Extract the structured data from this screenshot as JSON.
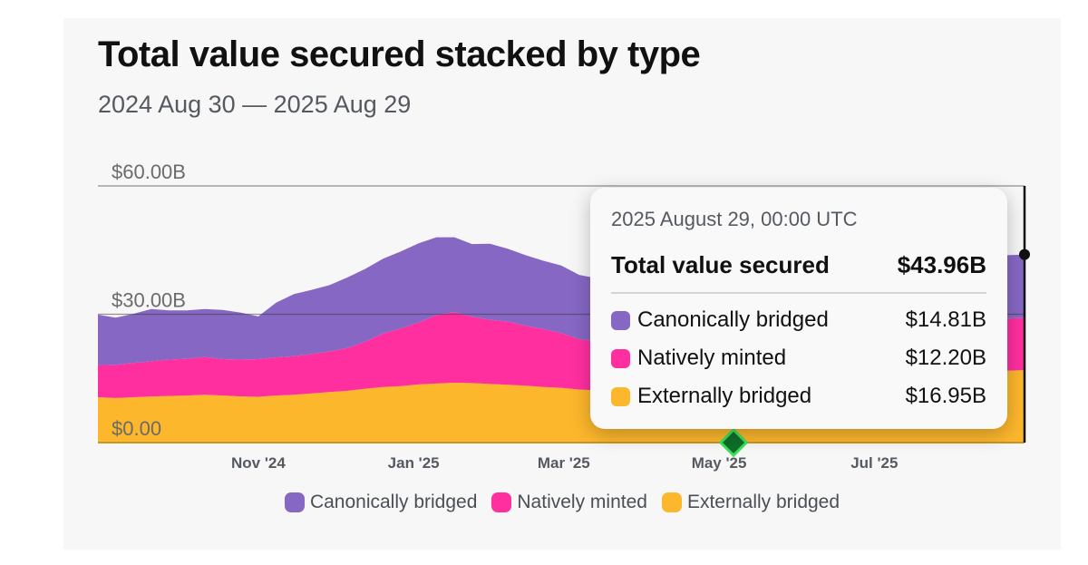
{
  "title": "Total value secured stacked by type",
  "subtitle": "2024 Aug 30 — 2025 Aug 29",
  "colors": {
    "canonically": "#8668c4",
    "natively": "#ff2f9f",
    "externally": "#fdb72c",
    "marker": "#0f6e2a",
    "marker_glow": "#3ee05a"
  },
  "tooltip": {
    "date": "2025 August 29, 00:00 UTC",
    "total_label": "Total value secured",
    "total_value": "$43.96B",
    "rows": [
      {
        "label": "Canonically bridged",
        "value": "$14.81B",
        "color": "#8668c4"
      },
      {
        "label": "Natively minted",
        "value": "$12.20B",
        "color": "#ff2f9f"
      },
      {
        "label": "Externally bridged",
        "value": "$16.95B",
        "color": "#fdb72c"
      }
    ]
  },
  "legend": [
    {
      "label": "Canonically bridged",
      "color": "#8668c4"
    },
    {
      "label": "Natively minted",
      "color": "#ff2f9f"
    },
    {
      "label": "Externally bridged",
      "color": "#fdb72c"
    }
  ],
  "chart_data": {
    "type": "area",
    "stacked": true,
    "title": "Total value secured stacked by type",
    "subtitle": "2024 Aug 30 — 2025 Aug 29",
    "xlabel": "",
    "ylabel": "",
    "ylim": [
      0,
      60
    ],
    "y_unit": "$B",
    "y_ticks": [
      0,
      30,
      60
    ],
    "y_tick_labels": [
      "$0.00",
      "$30.00B",
      "$60.00B"
    ],
    "x_range_days": [
      0,
      364
    ],
    "x_ticks": [
      63,
      124,
      183,
      244,
      305
    ],
    "x_tick_labels": [
      "Nov '24",
      "Jan '25",
      "Mar '25",
      "May '25",
      "Jul '25"
    ],
    "grid": true,
    "legend_position": "bottom",
    "x_days": [
      0,
      7,
      14,
      21,
      28,
      35,
      42,
      49,
      56,
      63,
      70,
      77,
      84,
      91,
      98,
      105,
      112,
      119,
      126,
      133,
      140,
      147,
      154,
      161,
      168,
      175,
      182,
      189,
      196,
      203,
      210,
      217,
      224,
      231,
      238,
      245,
      252,
      259,
      266,
      273,
      280,
      287,
      294,
      301,
      308,
      315,
      322,
      329,
      336,
      343,
      350,
      357,
      364
    ],
    "series": [
      {
        "name": "Externally bridged",
        "values": [
          10.6,
          10.4,
          10.6,
          10.8,
          10.9,
          11.0,
          11.2,
          11.0,
          10.8,
          10.7,
          11.0,
          11.2,
          11.5,
          11.8,
          12.1,
          12.6,
          13.0,
          13.2,
          13.6,
          13.8,
          14.0,
          13.9,
          13.7,
          13.5,
          13.3,
          13.0,
          12.8,
          12.4,
          12.2,
          12.0,
          12.0,
          12.1,
          12.2,
          12.3,
          12.4,
          12.6,
          12.8,
          13.0,
          13.2,
          13.5,
          13.8,
          14.1,
          14.4,
          14.7,
          15.0,
          15.3,
          15.6,
          15.9,
          16.2,
          16.5,
          16.7,
          16.8,
          16.95
        ]
      },
      {
        "name": "Natively minted",
        "values": [
          7.5,
          7.8,
          8.0,
          8.2,
          8.5,
          8.6,
          8.8,
          8.5,
          8.6,
          8.8,
          8.9,
          9.0,
          9.2,
          9.5,
          10.0,
          11.0,
          12.5,
          13.5,
          14.5,
          16.0,
          16.5,
          15.5,
          15.0,
          14.8,
          14.0,
          13.5,
          12.8,
          11.8,
          11.4,
          11.5,
          11.6,
          11.8,
          11.7,
          11.8,
          11.9,
          11.9,
          12.0,
          12.0,
          12.1,
          12.1,
          12.1,
          12.1,
          12.2,
          12.2,
          12.2,
          12.2,
          12.2,
          12.2,
          12.2,
          12.2,
          12.2,
          12.2,
          12.2
        ]
      },
      {
        "name": "Canonically bridged",
        "values": [
          11.8,
          11.0,
          11.5,
          12.2,
          11.5,
          11.3,
          11.2,
          11.5,
          11.0,
          10.0,
          12.8,
          14.5,
          15.0,
          15.5,
          16.5,
          17.0,
          17.5,
          18.0,
          18.5,
          18.2,
          17.5,
          17.0,
          17.8,
          17.0,
          16.5,
          16.0,
          15.8,
          15.0,
          14.8,
          14.9,
          14.5,
          14.6,
          14.4,
          14.6,
          14.7,
          14.7,
          14.6,
          14.8,
          14.7,
          14.7,
          14.8,
          14.8,
          14.8,
          14.8,
          14.8,
          14.8,
          14.8,
          14.8,
          14.8,
          14.8,
          14.8,
          14.8,
          14.81
        ]
      }
    ]
  },
  "hover": {
    "x_day": 364
  }
}
